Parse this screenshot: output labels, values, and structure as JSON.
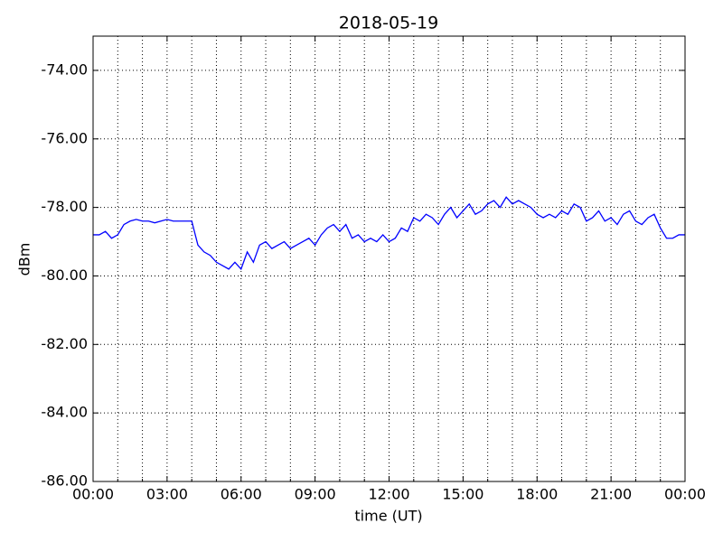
{
  "chart_data": {
    "type": "line",
    "title": "2018-05-19",
    "xlabel": "time (UT)",
    "ylabel": "dBm",
    "x": [
      0,
      0.25,
      0.5,
      0.75,
      1,
      1.25,
      1.5,
      1.75,
      2,
      2.25,
      2.5,
      2.75,
      3,
      3.25,
      3.5,
      3.75,
      4,
      4.25,
      4.5,
      4.75,
      5,
      5.25,
      5.5,
      5.75,
      6,
      6.25,
      6.5,
      6.75,
      7,
      7.25,
      7.5,
      7.75,
      8,
      8.25,
      8.5,
      8.75,
      9,
      9.25,
      9.5,
      9.75,
      10,
      10.25,
      10.5,
      10.75,
      11,
      11.25,
      11.5,
      11.75,
      12,
      12.25,
      12.5,
      12.75,
      13,
      13.25,
      13.5,
      13.75,
      14,
      14.25,
      14.5,
      14.75,
      15,
      15.25,
      15.5,
      15.75,
      16,
      16.25,
      16.5,
      16.75,
      17,
      17.25,
      17.5,
      17.75,
      18,
      18.25,
      18.5,
      18.75,
      19,
      19.25,
      19.5,
      19.75,
      20,
      20.25,
      20.5,
      20.75,
      21,
      21.25,
      21.5,
      21.75,
      22,
      22.25,
      22.5,
      22.75,
      23,
      23.25,
      23.5,
      23.75,
      24
    ],
    "series": [
      {
        "name": "dBm",
        "color": "#0000ff",
        "values": [
          -78.8,
          -78.8,
          -78.7,
          -78.9,
          -78.8,
          -78.5,
          -78.4,
          -78.35,
          -78.4,
          -78.4,
          -78.45,
          -78.4,
          -78.35,
          -78.4,
          -78.4,
          -78.4,
          -78.4,
          -79.1,
          -79.3,
          -79.4,
          -79.6,
          -79.7,
          -79.8,
          -79.6,
          -79.8,
          -79.3,
          -79.6,
          -79.1,
          -79.0,
          -79.2,
          -79.1,
          -79.0,
          -79.2,
          -79.1,
          -79.0,
          -78.9,
          -79.1,
          -78.8,
          -78.6,
          -78.5,
          -78.7,
          -78.5,
          -78.9,
          -78.8,
          -79.0,
          -78.9,
          -79.0,
          -78.8,
          -79.0,
          -78.9,
          -78.6,
          -78.7,
          -78.3,
          -78.4,
          -78.2,
          -78.3,
          -78.5,
          -78.2,
          -78.0,
          -78.3,
          -78.1,
          -77.9,
          -78.2,
          -78.1,
          -77.9,
          -77.8,
          -78.0,
          -77.7,
          -77.9,
          -77.8,
          -77.9,
          -78.0,
          -78.2,
          -78.3,
          -78.2,
          -78.3,
          -78.1,
          -78.2,
          -77.9,
          -78.0,
          -78.4,
          -78.3,
          -78.1,
          -78.4,
          -78.3,
          -78.5,
          -78.2,
          -78.1,
          -78.4,
          -78.5,
          -78.3,
          -78.2,
          -78.6,
          -78.9,
          -78.9,
          -78.8,
          -78.8
        ]
      }
    ],
    "xlim": [
      0,
      24
    ],
    "xticks": [
      {
        "value": 0,
        "label": "00:00"
      },
      {
        "value": 3,
        "label": "03:00"
      },
      {
        "value": 6,
        "label": "06:00"
      },
      {
        "value": 9,
        "label": "09:00"
      },
      {
        "value": 12,
        "label": "12:00"
      },
      {
        "value": 15,
        "label": "15:00"
      },
      {
        "value": 18,
        "label": "18:00"
      },
      {
        "value": 21,
        "label": "21:00"
      },
      {
        "value": 24,
        "label": "00:00"
      }
    ],
    "xminorticks": [
      1,
      2,
      4,
      5,
      7,
      8,
      10,
      11,
      13,
      14,
      16,
      17,
      19,
      20,
      22,
      23
    ],
    "ylim": [
      -86,
      -73
    ],
    "yticks": [
      {
        "value": -86,
        "label": "-86.00"
      },
      {
        "value": -84,
        "label": "-84.00"
      },
      {
        "value": -82,
        "label": "-82.00"
      },
      {
        "value": -80,
        "label": "-80.00"
      },
      {
        "value": -78,
        "label": "-78.00"
      },
      {
        "value": -76,
        "label": "-76.00"
      },
      {
        "value": -74,
        "label": "-74.00"
      }
    ],
    "grid": true
  }
}
